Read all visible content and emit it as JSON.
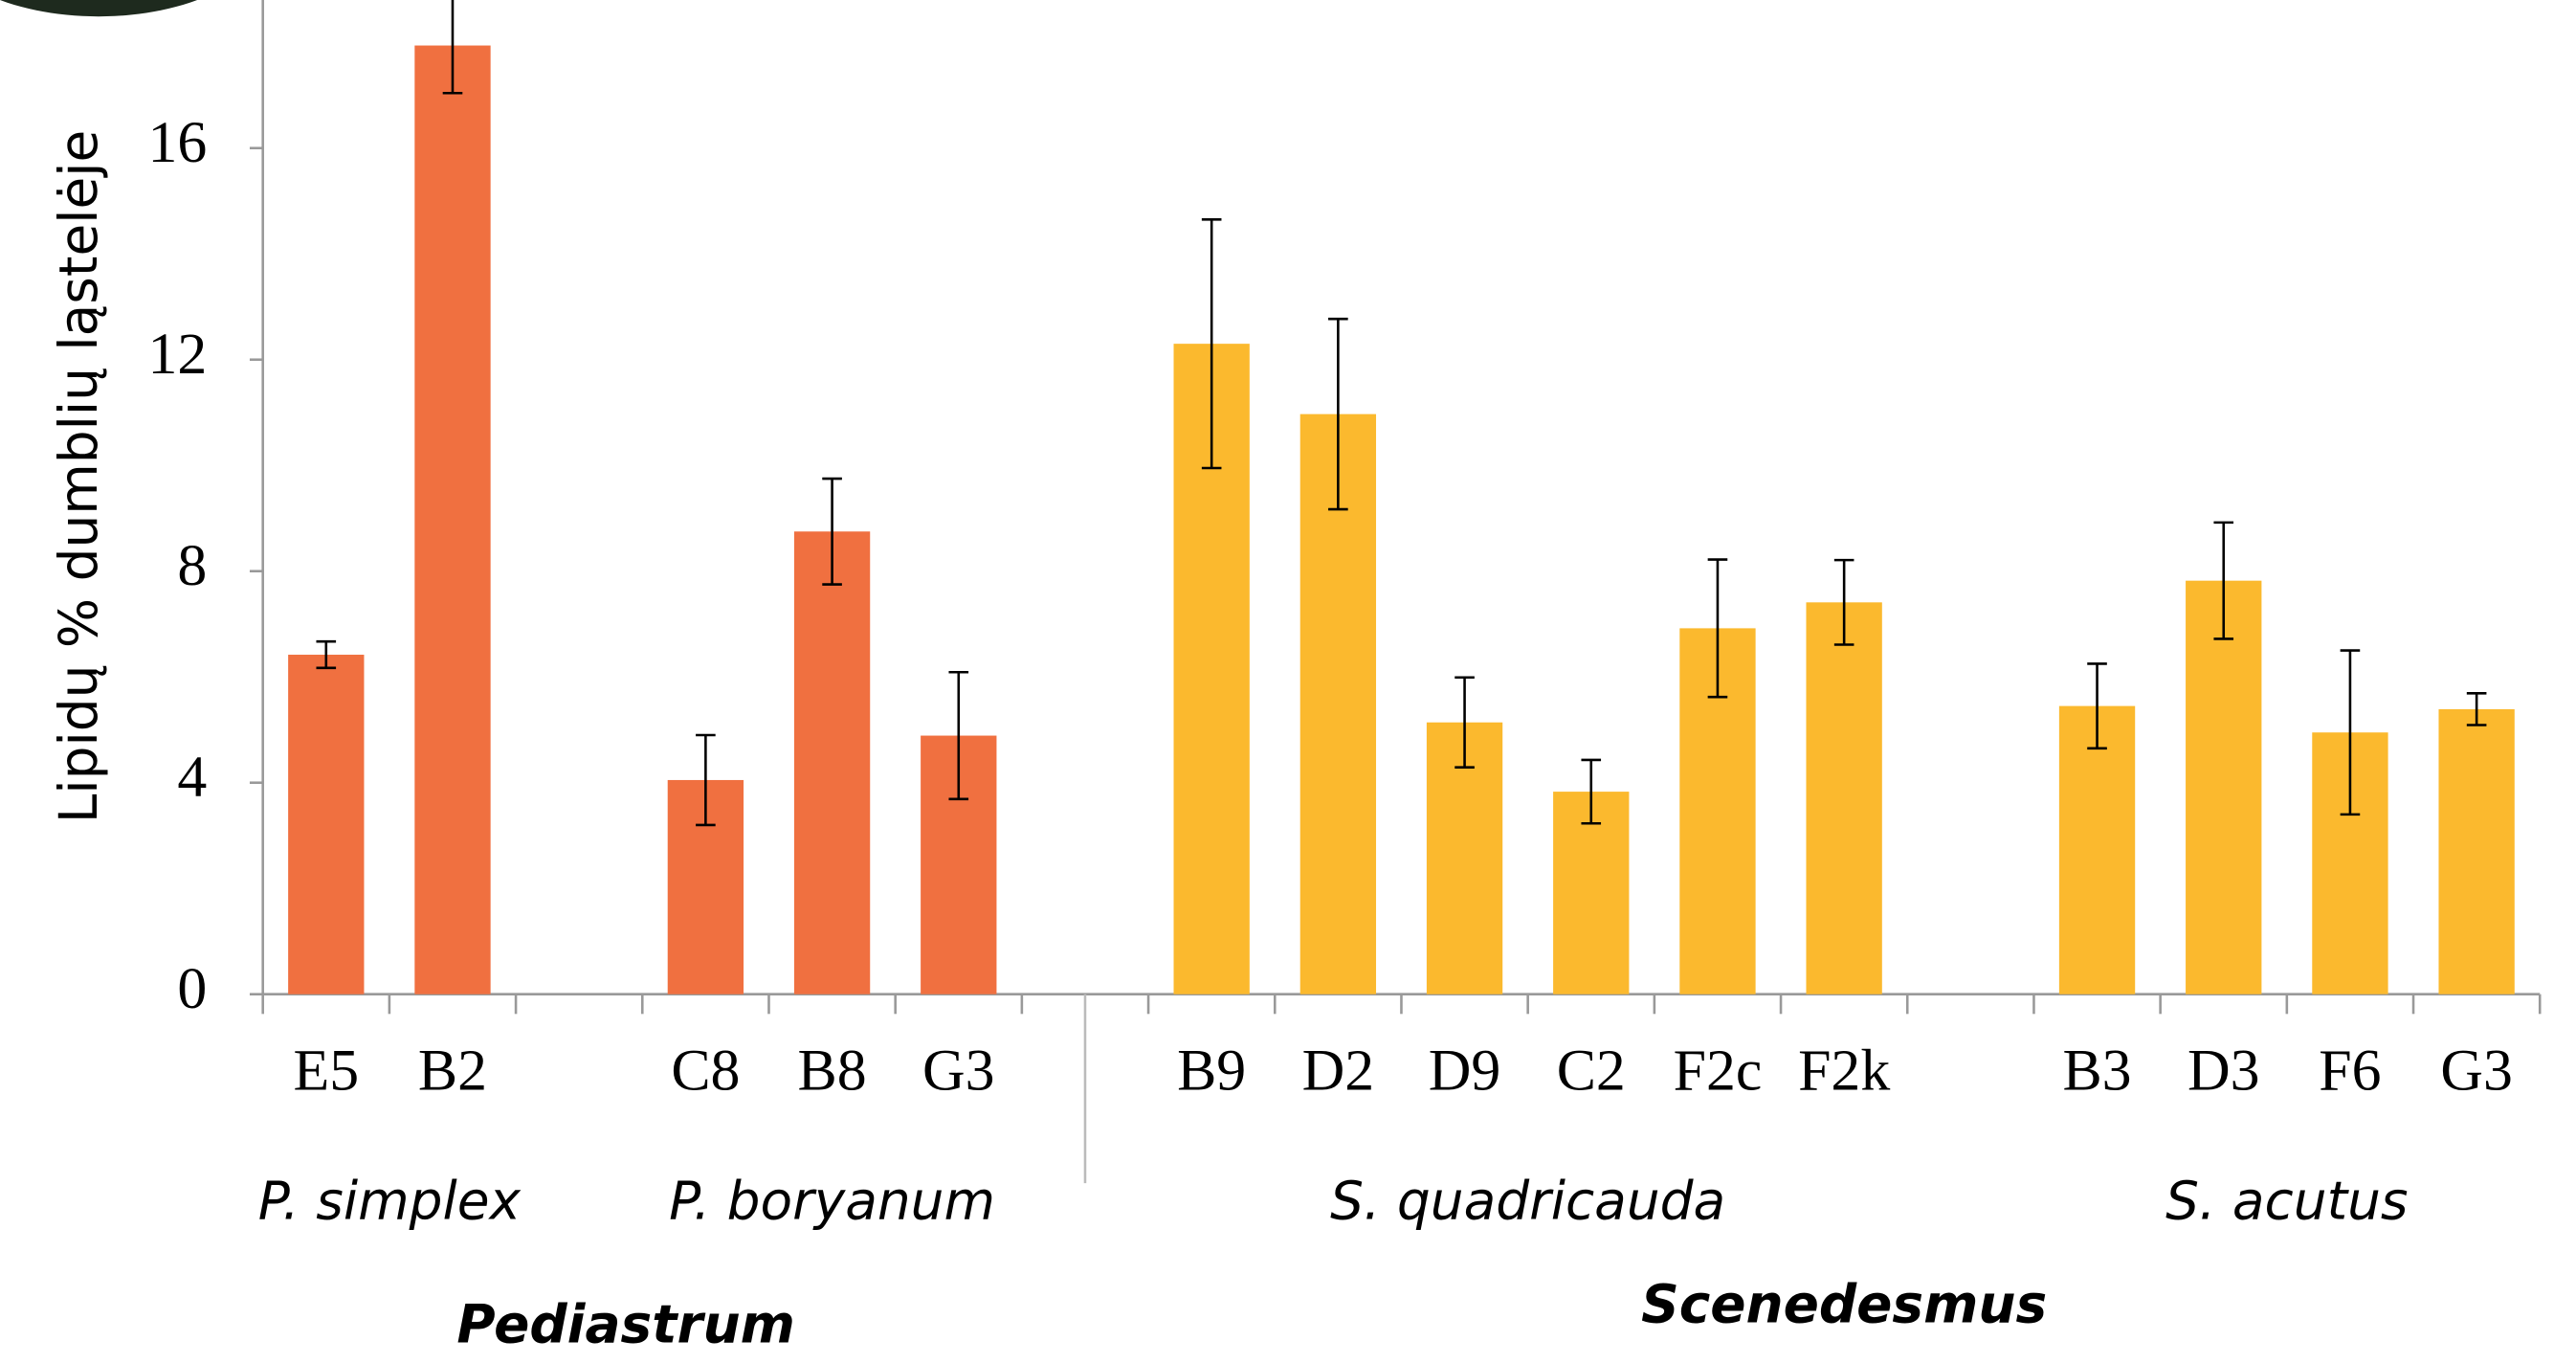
{
  "chart_data": {
    "type": "bar",
    "y_label": "Lipidų % dumblių ląstelėje",
    "categories": [
      "E5",
      "B2",
      null,
      "C8",
      "B8",
      "G3",
      null,
      "B9",
      "D2",
      "D9",
      "C2",
      "F2c",
      "F2k",
      null,
      "B3",
      "D3",
      "F6",
      "G3"
    ],
    "series": [
      {
        "name": "Pediastrum",
        "color": "#f07040",
        "values": [
          6.42,
          17.94,
          null,
          4.05,
          8.75,
          4.89,
          null,
          null,
          null,
          null,
          null,
          null,
          null,
          null,
          null,
          null,
          null,
          null
        ],
        "errors": [
          0.25,
          0.9,
          null,
          0.85,
          1.0,
          1.2,
          null,
          null,
          null,
          null,
          null,
          null,
          null,
          null,
          null,
          null,
          null,
          null
        ]
      },
      {
        "name": "Scenedesmus",
        "color": "#fbb92e",
        "values": [
          null,
          null,
          null,
          null,
          null,
          null,
          null,
          12.3,
          10.97,
          5.14,
          3.83,
          6.92,
          7.41,
          null,
          5.45,
          7.82,
          4.95,
          5.39
        ],
        "errors": [
          null,
          null,
          null,
          null,
          null,
          null,
          null,
          2.35,
          1.8,
          0.85,
          0.6,
          1.3,
          0.8,
          null,
          0.8,
          1.1,
          1.55,
          0.3
        ]
      }
    ],
    "groups": [
      "P. simplex",
      "P. boryanum",
      "S. quadricauda",
      "S. acutus"
    ],
    "ylim": [
      0,
      18.8
    ],
    "yticks": [
      0,
      4,
      8,
      12,
      16
    ]
  }
}
